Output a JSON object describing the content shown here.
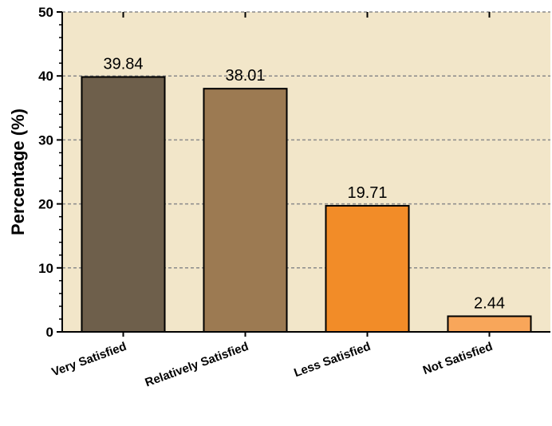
{
  "chart_data": {
    "type": "bar",
    "title": "",
    "xlabel": "",
    "ylabel": "Percentage (%)",
    "categories": [
      "Very Satisfied",
      "Relatively Satisfied",
      "Less Satisfied",
      "Not Satisfied"
    ],
    "values": [
      39.84,
      38.01,
      19.71,
      2.44
    ],
    "data_labels": [
      "39.84",
      "38.01",
      "19.71",
      "2.44"
    ],
    "bar_colors": [
      "#6e5f4b",
      "#9c7a52",
      "#f28c28",
      "#f8a65a"
    ],
    "ylim": [
      0,
      50
    ],
    "yticks": [
      0,
      10,
      20,
      30,
      40,
      50
    ],
    "grid": "horizontal dashed",
    "plot_background": "#f2e6c9",
    "legend": "none"
  }
}
